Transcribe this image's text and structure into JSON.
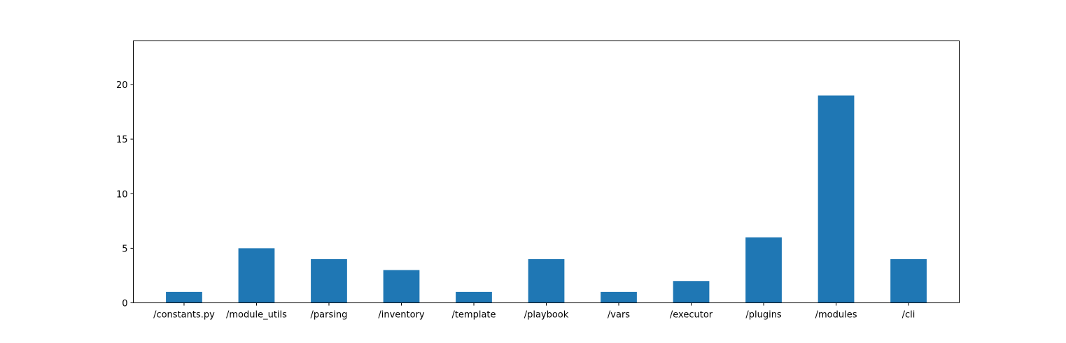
{
  "chart_data": {
    "type": "bar",
    "title": "",
    "xlabel": "",
    "ylabel": "",
    "categories": [
      "/constants.py",
      "/module_utils",
      "/parsing",
      "/inventory",
      "/template",
      "/playbook",
      "/vars",
      "/executor",
      "/plugins",
      "/modules",
      "/cli"
    ],
    "values": [
      1,
      5,
      4,
      3,
      1,
      4,
      1,
      2,
      6,
      19,
      4
    ],
    "ylim": [
      0,
      24
    ],
    "yticks": [
      0,
      5,
      10,
      15,
      20
    ],
    "ytick_labels": [
      "0",
      "5",
      "10",
      "15",
      "20"
    ],
    "grid": false,
    "legend": "none",
    "bar_color": "#1f77b4"
  }
}
